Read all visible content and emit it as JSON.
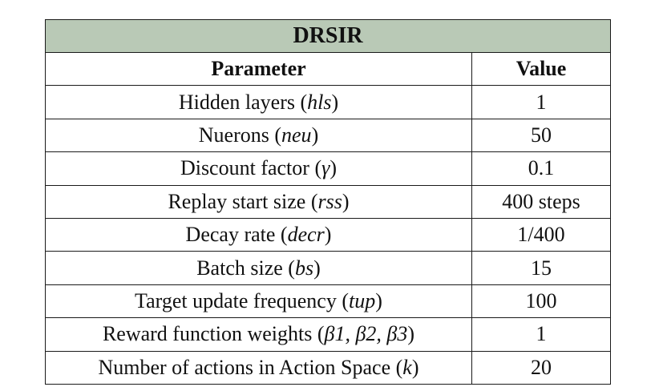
{
  "table": {
    "title": "DRSIR",
    "headers": [
      "Parameter",
      "Value"
    ],
    "rows": [
      {
        "label": "Hidden layers",
        "symbol": "hls",
        "value": "1"
      },
      {
        "label": "Nuerons",
        "symbol": "neu",
        "value": "50"
      },
      {
        "label": "Discount factor",
        "symbol": "γ",
        "value": "0.1"
      },
      {
        "label": "Replay start size",
        "symbol": "rss",
        "value": "400 steps"
      },
      {
        "label": "Decay rate",
        "symbol": "decr",
        "value": "1/400"
      },
      {
        "label": "Batch size",
        "symbol": "bs",
        "value": "15"
      },
      {
        "label": "Target update frequency",
        "symbol": "tup",
        "value": "100"
      },
      {
        "label": "Reward function weights",
        "symbol": "β1, β2, β3",
        "value": "1"
      },
      {
        "label": "Number of actions in Action Space",
        "symbol": "k",
        "value": "20"
      }
    ]
  },
  "colors": {
    "title_background": "#b9c9b6",
    "border": "#1a1a1a"
  }
}
